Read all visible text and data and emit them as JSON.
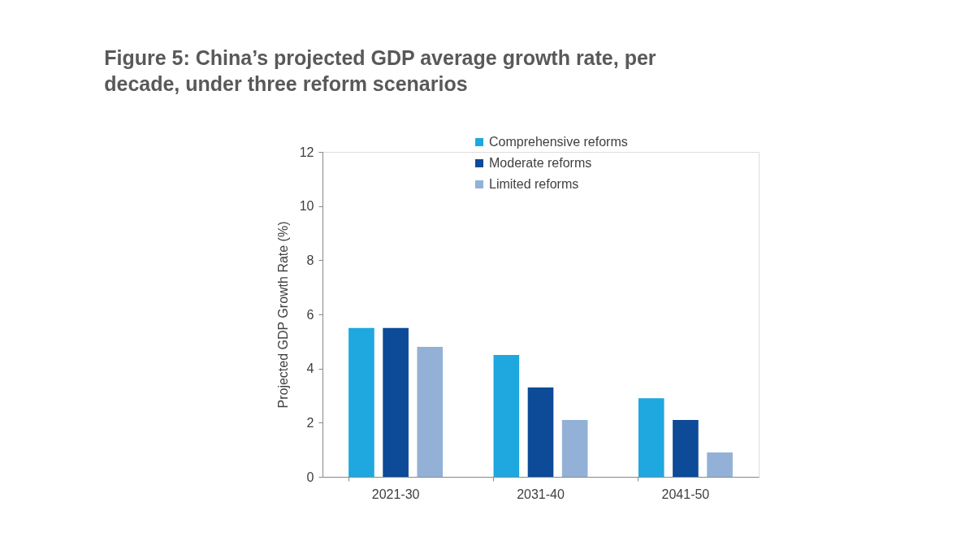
{
  "chart_data": {
    "type": "bar",
    "title": "Figure 5: China’s projected GDP average growth rate, per decade, under three reform scenarios",
    "ylabel": "Projected GDP Growth Rate (%)",
    "categories": [
      "2021-30",
      "2031-40",
      "2041-50"
    ],
    "series": [
      {
        "name": "Comprehensive reforms",
        "color": "#1fa7df",
        "values": [
          5.5,
          4.5,
          2.9
        ]
      },
      {
        "name": "Moderate reforms",
        "color": "#0d4a97",
        "values": [
          5.5,
          3.3,
          2.1
        ]
      },
      {
        "name": "Limited reforms",
        "color": "#93b1d6",
        "values": [
          4.8,
          2.1,
          0.9
        ]
      }
    ],
    "ylim": [
      0,
      12
    ],
    "yticks": [
      0,
      2,
      4,
      6,
      8,
      10,
      12
    ],
    "grid": false,
    "legend": "top"
  }
}
